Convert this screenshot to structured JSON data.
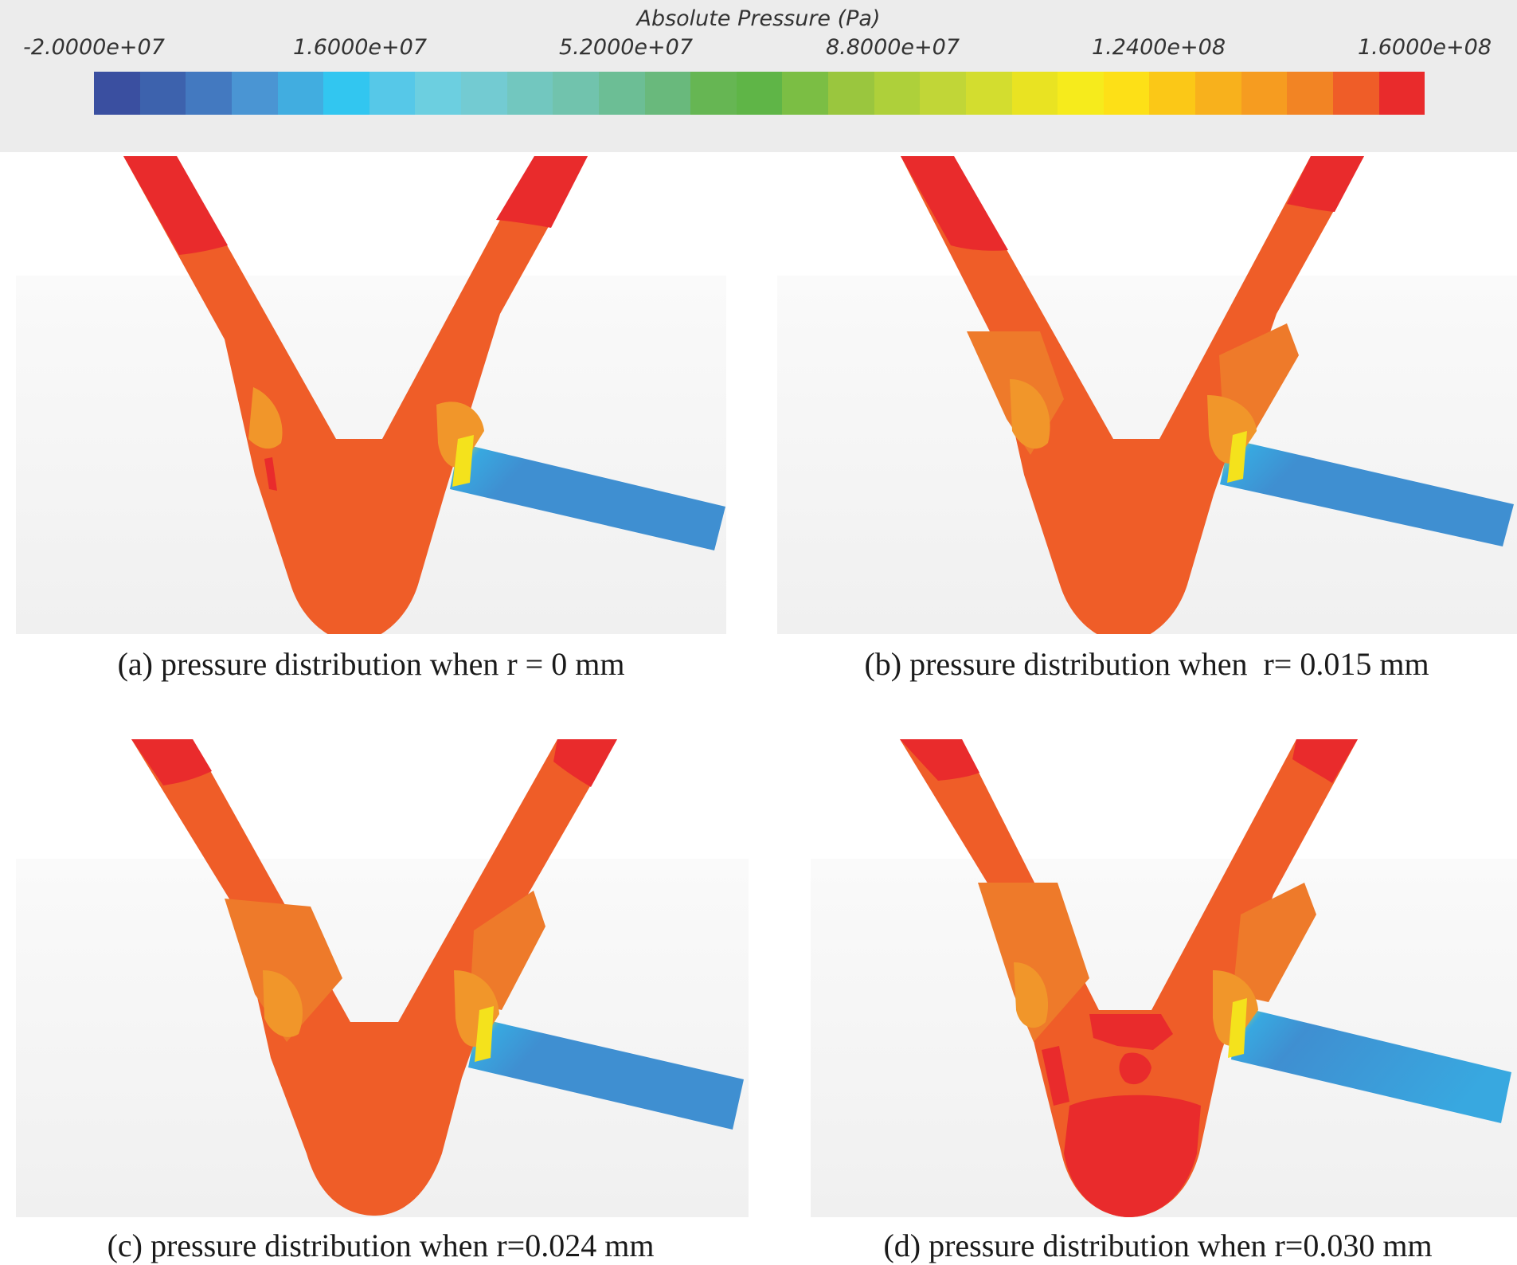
{
  "legend": {
    "title": "Absolute Pressure (Pa)",
    "ticks": [
      "-2.0000e+07",
      "1.6000e+07",
      "5.2000e+07",
      "8.8000e+07",
      "1.2400e+08",
      "1.6000e+08"
    ],
    "colors": [
      "#3a4fa0",
      "#3d62ad",
      "#4379c0",
      "#4a95d3",
      "#41ade0",
      "#32c6f0",
      "#56c8e8",
      "#6ccfe0",
      "#73cbd2",
      "#72c7bf",
      "#71c3ad",
      "#6cbe95",
      "#69b97c",
      "#66b653",
      "#5fb547",
      "#7bbe44",
      "#9ac63e",
      "#aed03a",
      "#c1d637",
      "#d3dd2f",
      "#e9e322",
      "#f6eb1c",
      "#fde017",
      "#fbc817",
      "#f8b11c",
      "#f69c20",
      "#f28424",
      "#ef5d28",
      "#e92b2c"
    ]
  },
  "panels": [
    {
      "caption": "(a) pressure distribution when r = 0 mm"
    },
    {
      "caption": "(b) pressure distribution when  r= 0.015 mm"
    },
    {
      "caption": "(c) pressure distribution when r=0.024 mm"
    },
    {
      "caption": "(d) pressure distribution when r=0.030 mm"
    }
  ],
  "palette": {
    "max_red": "#e92b2c",
    "high_orange": "#ef5d28",
    "mid_orange": "#ee7a2a",
    "orange": "#f1962a",
    "blue": "#3f8fd1",
    "light_blue": "#38a8e0",
    "dark_blue": "#3d5aa8",
    "yellow": "#f4e21c",
    "green": "#8cc63f"
  }
}
